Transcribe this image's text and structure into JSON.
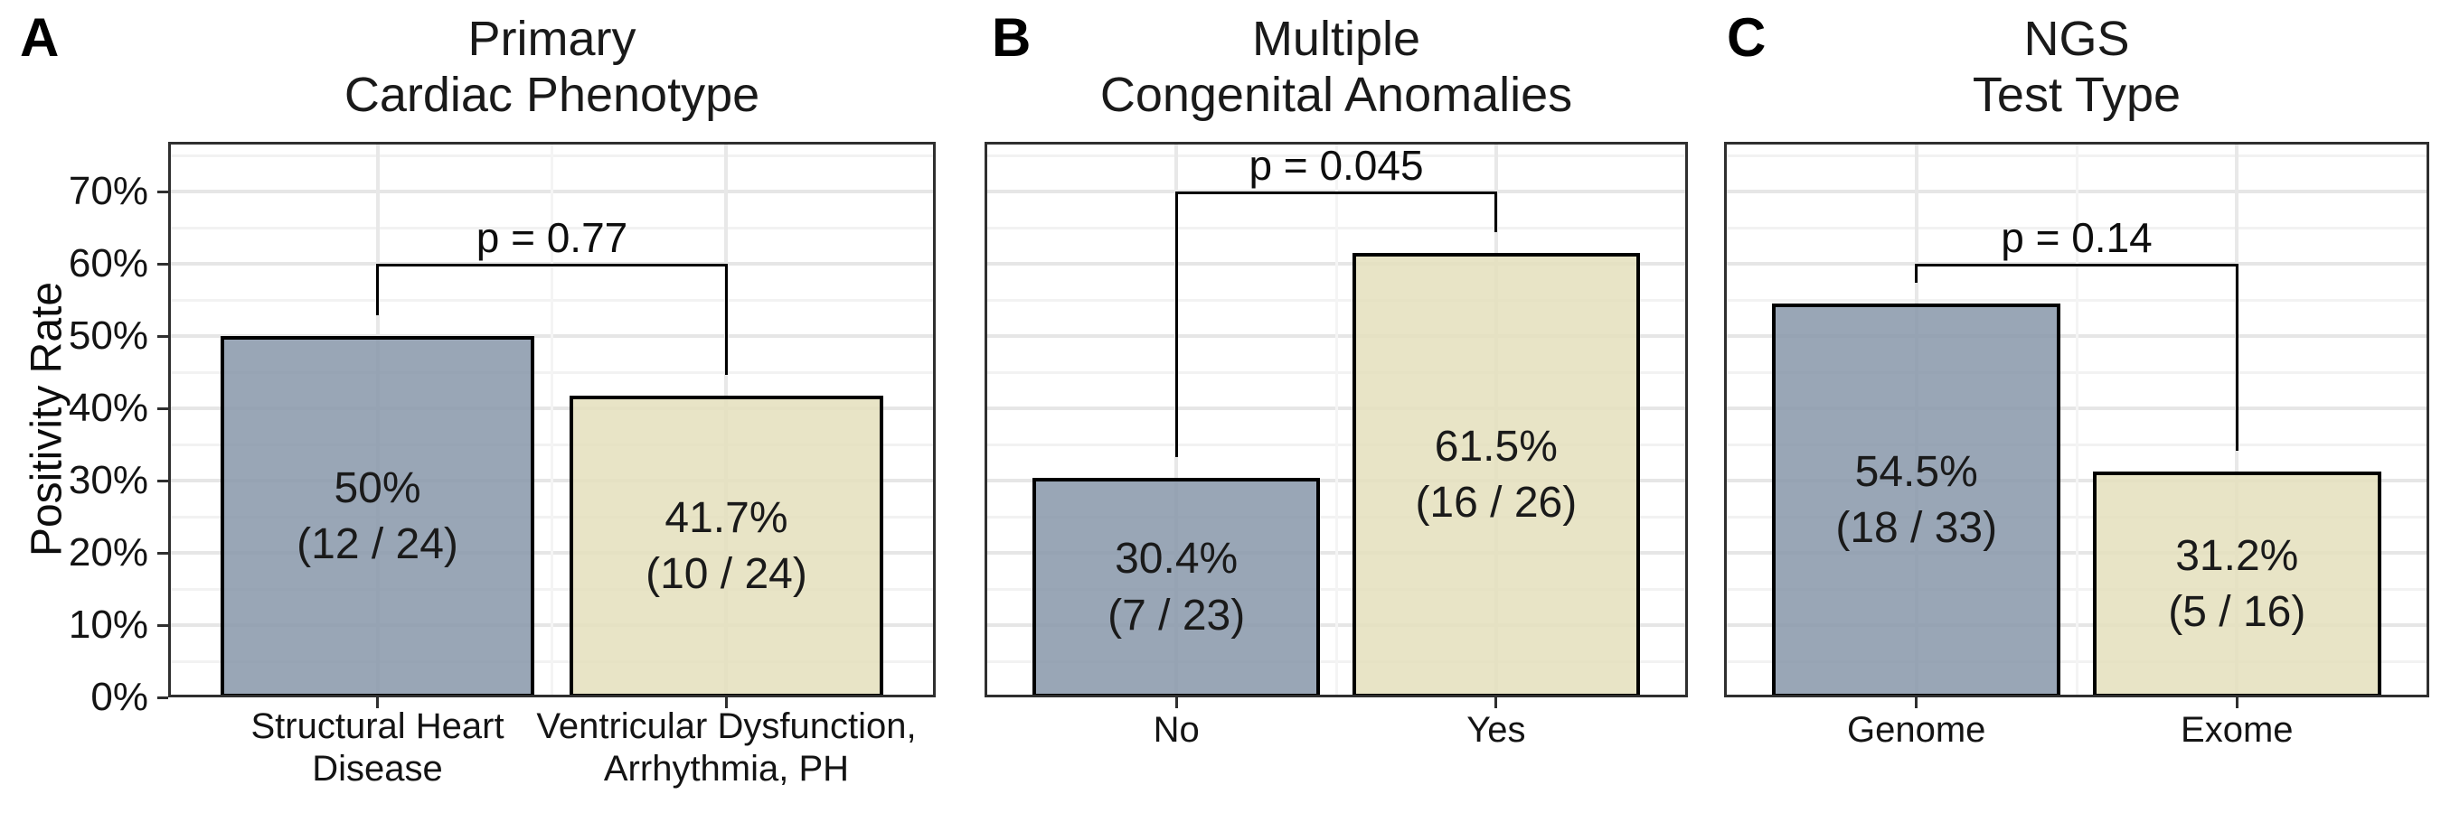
{
  "chart_data": {
    "type": "bar",
    "ylabel": "Positivity Rate",
    "y_axis": {
      "ticks": [
        {
          "pct": 0,
          "label": "0%"
        },
        {
          "pct": 10,
          "label": "10%"
        },
        {
          "pct": 20,
          "label": "20%"
        },
        {
          "pct": 30,
          "label": "30%"
        },
        {
          "pct": 40,
          "label": "40%"
        },
        {
          "pct": 50,
          "label": "50%"
        },
        {
          "pct": 60,
          "label": "60%"
        },
        {
          "pct": 70,
          "label": "70%"
        }
      ],
      "minor_gridlines_pct": [
        5,
        15,
        25,
        35,
        45,
        55,
        65,
        75
      ],
      "range_max_pct": 76.9,
      "grid": "on"
    },
    "colors": {
      "group1_fill": "rgba(135,150,169,0.85)",
      "group2_fill": "rgba(228,223,188,0.85)",
      "bar_border": "#000000",
      "panel_border": "#2f2f2f"
    },
    "panels": [
      {
        "tag": "A",
        "title_lines": [
          "Primary",
          "Cardiac Phenotype"
        ],
        "p_label": "p = 0.77",
        "bracket_pct": 60,
        "bars": [
          {
            "label_lines": [
              "Structural Heart",
              "Disease"
            ],
            "value_pct": 50,
            "percent_label": "50%",
            "fraction_label": "(12 / 24)",
            "group": 1
          },
          {
            "label_lines": [
              "Ventricular Dysfunction,",
              "Arrhythmia, PH"
            ],
            "value_pct": 41.7,
            "percent_label": "41.7%",
            "fraction_label": "(10 / 24)",
            "group": 2
          }
        ]
      },
      {
        "tag": "B",
        "title_lines": [
          "Multiple",
          "Congenital Anomalies"
        ],
        "p_label": "p = 0.045",
        "bracket_pct": 70,
        "bars": [
          {
            "label_lines": [
              "No"
            ],
            "value_pct": 30.4,
            "percent_label": "30.4%",
            "fraction_label": "(7 / 23)",
            "group": 1
          },
          {
            "label_lines": [
              "Yes"
            ],
            "value_pct": 61.5,
            "percent_label": "61.5%",
            "fraction_label": "(16 / 26)",
            "group": 2
          }
        ]
      },
      {
        "tag": "C",
        "title_lines": [
          "NGS",
          "Test Type"
        ],
        "p_label": "p = 0.14",
        "bracket_pct": 60,
        "bars": [
          {
            "label_lines": [
              "Genome"
            ],
            "value_pct": 54.5,
            "percent_label": "54.5%",
            "fraction_label": "(18 / 33)",
            "group": 1
          },
          {
            "label_lines": [
              "Exome"
            ],
            "value_pct": 31.2,
            "percent_label": "31.2%",
            "fraction_label": "(5 / 16)",
            "group": 2
          }
        ]
      }
    ]
  }
}
